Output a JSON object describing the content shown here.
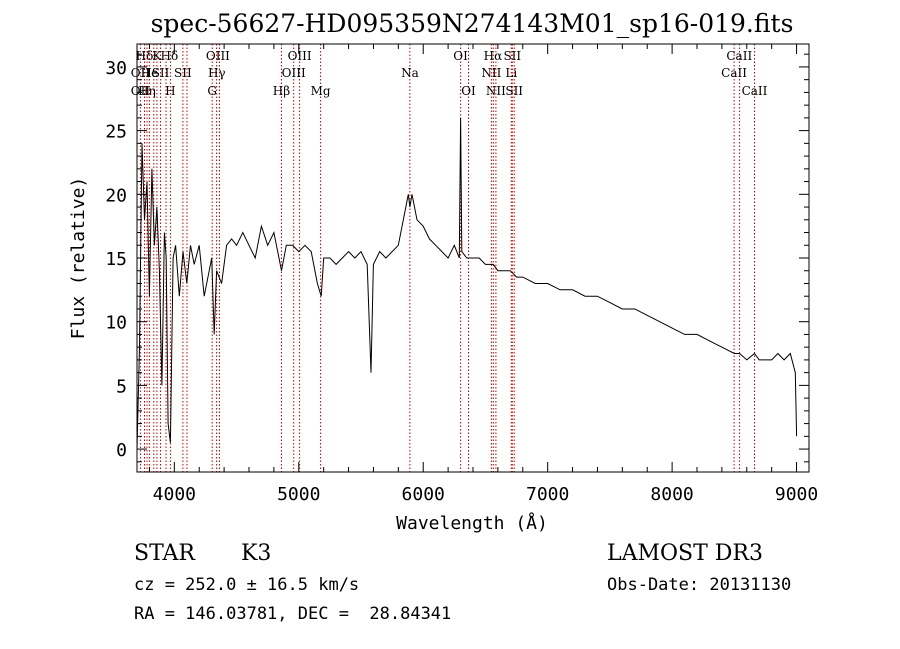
{
  "chart_data": {
    "type": "line",
    "title": "spec-56627-HD095359N274143M01_sp16-019.fits",
    "xlabel": "Wavelength (Å)",
    "ylabel": "Flux (relative)",
    "xlim": [
      3700,
      9100
    ],
    "ylim": [
      -1.8,
      31.8
    ],
    "x_ticks": [
      4000,
      5000,
      6000,
      7000,
      8000,
      9000
    ],
    "y_ticks": [
      0,
      5,
      10,
      15,
      20,
      25,
      30
    ],
    "grid": false,
    "series": [
      {
        "x": [
          3700,
          3720,
          3740,
          3760,
          3780,
          3800,
          3820,
          3840,
          3860,
          3880,
          3900,
          3920,
          3935,
          3950,
          3968,
          3990,
          4010,
          4040,
          4070,
          4100,
          4130,
          4160,
          4200,
          4240,
          4280,
          4300,
          4320,
          4340,
          4380,
          4420,
          4460,
          4500,
          4550,
          4600,
          4650,
          4700,
          4750,
          4800,
          4861,
          4900,
          4950,
          5000,
          5050,
          5100,
          5150,
          5180,
          5200,
          5250,
          5300,
          5350,
          5400,
          5450,
          5500,
          5550,
          5580,
          5600,
          5650,
          5700,
          5750,
          5800,
          5850,
          5880,
          5893,
          5910,
          5950,
          6000,
          6050,
          6100,
          6150,
          6200,
          6250,
          6290,
          6300,
          6310,
          6350,
          6400,
          6450,
          6500,
          6563,
          6600,
          6650,
          6700,
          6750,
          6800,
          6900,
          7000,
          7100,
          7200,
          7300,
          7400,
          7500,
          7600,
          7700,
          7800,
          7900,
          8000,
          8100,
          8200,
          8300,
          8400,
          8500,
          8542,
          8600,
          8662,
          8700,
          8800,
          8850,
          8900,
          8950,
          8990,
          9000
        ],
        "y": [
          0.0,
          8.0,
          24.0,
          18.0,
          21.0,
          12.0,
          22.0,
          16.0,
          19.0,
          14.0,
          5.0,
          17.0,
          15.0,
          2.0,
          0.5,
          15.0,
          16.0,
          12.0,
          15.5,
          13.0,
          16.0,
          14.5,
          16.0,
          12.0,
          14.0,
          15.0,
          9.0,
          14.0,
          13.0,
          16.0,
          16.5,
          16.0,
          17.0,
          16.0,
          15.0,
          17.5,
          16.0,
          17.0,
          14.0,
          16.0,
          16.0,
          15.5,
          16.0,
          15.5,
          13.0,
          12.0,
          15.0,
          15.0,
          14.5,
          15.0,
          15.5,
          15.0,
          15.5,
          14.5,
          6.0,
          14.5,
          15.5,
          15.0,
          15.5,
          16.0,
          18.5,
          20.0,
          19.0,
          20.0,
          18.0,
          17.5,
          16.5,
          16.0,
          15.5,
          15.0,
          16.0,
          15.0,
          26.0,
          15.5,
          15.0,
          15.0,
          15.0,
          14.5,
          14.5,
          14.0,
          14.0,
          14.0,
          13.5,
          13.5,
          13.0,
          13.0,
          12.5,
          12.5,
          12.0,
          12.0,
          11.5,
          11.0,
          11.0,
          10.5,
          10.0,
          9.5,
          9.0,
          9.0,
          8.5,
          8.0,
          7.5,
          7.5,
          7.0,
          7.5,
          7.0,
          7.0,
          7.5,
          7.0,
          7.5,
          6.0,
          1.0
        ]
      }
    ],
    "annotations": [
      {
        "label": "Hδ",
        "x": 3760,
        "row": 0
      },
      {
        "label": "K",
        "x": 3860,
        "row": 0
      },
      {
        "label": "Hδ",
        "x": 3960,
        "row": 0
      },
      {
        "label": "OIII",
        "x": 4350,
        "row": 0
      },
      {
        "label": "OIII",
        "x": 5007,
        "row": 0
      },
      {
        "label": "OI",
        "x": 6300,
        "row": 0
      },
      {
        "label": "Hα",
        "x": 6560,
        "row": 0
      },
      {
        "label": "SII",
        "x": 6716,
        "row": 0
      },
      {
        "label": "CaII",
        "x": 8540,
        "row": 0
      },
      {
        "label": "OII",
        "x": 3727,
        "row": 1
      },
      {
        "label": "He",
        "x": 3800,
        "row": 1
      },
      {
        "label": "ISII",
        "x": 3870,
        "row": 1
      },
      {
        "label": "SII",
        "x": 4069,
        "row": 1
      },
      {
        "label": "Hγ",
        "x": 4341,
        "row": 1
      },
      {
        "label": "OIII",
        "x": 4959,
        "row": 1
      },
      {
        "label": "Na",
        "x": 5893,
        "row": 1
      },
      {
        "label": "NII",
        "x": 6548,
        "row": 1
      },
      {
        "label": "Li",
        "x": 6708,
        "row": 1
      },
      {
        "label": "CaII",
        "x": 8498,
        "row": 1
      },
      {
        "label": "OII",
        "x": 3727,
        "row": 2
      },
      {
        "label": "Hη",
        "x": 3780,
        "row": 2
      },
      {
        "label": "H",
        "x": 3968,
        "row": 2
      },
      {
        "label": "G",
        "x": 4304,
        "row": 2
      },
      {
        "label": "Hβ",
        "x": 4861,
        "row": 2
      },
      {
        "label": "Mg",
        "x": 5175,
        "row": 2
      },
      {
        "label": "OI",
        "x": 6364,
        "row": 2
      },
      {
        "label": "NII",
        "x": 6584,
        "row": 2
      },
      {
        "label": "SII",
        "x": 6731,
        "row": 2
      },
      {
        "label": "CaII",
        "x": 8662,
        "row": 2
      }
    ],
    "line_markers": [
      3727,
      3760,
      3780,
      3800,
      3835,
      3860,
      3889,
      3933,
      3968,
      4069,
      4102,
      4304,
      4340,
      4363,
      4861,
      4959,
      5007,
      5175,
      5893,
      6300,
      6364,
      6548,
      6563,
      6584,
      6708,
      6716,
      6731,
      8498,
      8542,
      8662
    ],
    "colors": {
      "spectrum": "#000000",
      "markers": "#cc0000",
      "axes": "#000000"
    }
  },
  "info": {
    "object_class": "STAR",
    "subclass": "K3",
    "survey": "LAMOST DR3",
    "cz": "cz = 252.0 ± 16.5 km/s",
    "obs_date": "Obs-Date: 20131130",
    "coords": "RA = 146.03781, DEC =  28.84341"
  }
}
